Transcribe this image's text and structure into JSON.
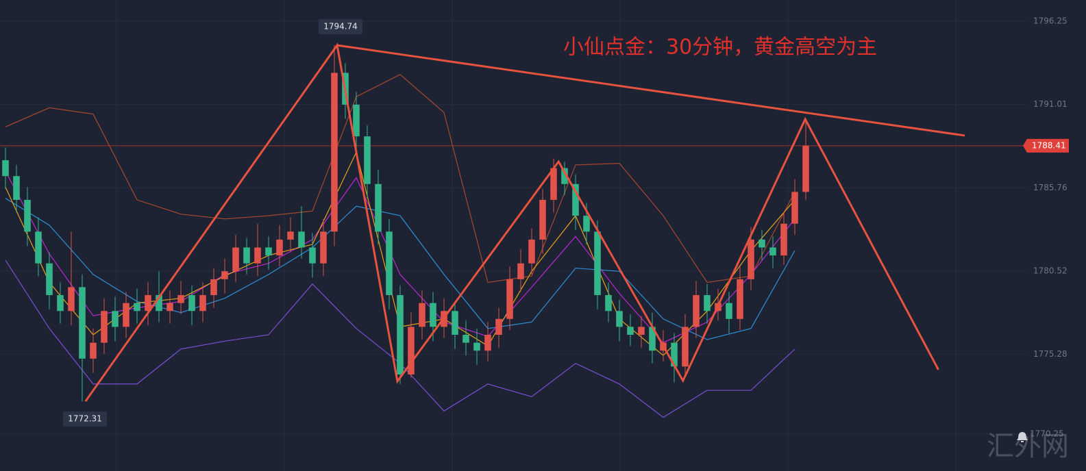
{
  "chart_data": {
    "type": "candlestick",
    "title": "小仙点金：30分钟，黄金高空为主",
    "watermark": "汇外网",
    "open": [
      1787.5,
      1786.5,
      1785,
      1783,
      1781,
      1779,
      1778,
      1779.5,
      1775,
      1776,
      1778,
      1777,
      1778.5,
      1778,
      1779,
      1778,
      1778.5,
      1779,
      1778,
      1779,
      1780,
      1780.5,
      1782,
      1781,
      1782,
      1781.5,
      1782.5,
      1783,
      1782,
      1781,
      1783,
      1793,
      1791,
      1789,
      1786,
      1783,
      1779,
      1774,
      1777,
      1778.5,
      1777,
      1778,
      1776.5,
      1776,
      1775.5,
      1776.5,
      1777.5,
      1780,
      1781,
      1782.5,
      1785,
      1787,
      1786,
      1784,
      1783,
      1779,
      1778,
      1777,
      1776.5,
      1777,
      1775.5,
      1776,
      1774.5,
      1777,
      1779,
      1778,
      1778.5,
      1777.5,
      1780,
      1782.5,
      1782,
      1781.5,
      1783.5,
      1785.5
    ],
    "high": [
      1788.3,
      1787.2,
      1785.8,
      1783.9,
      1781.7,
      1779.8,
      1783,
      1780.3,
      1776.9,
      1778.8,
      1778.9,
      1779.2,
      1779.4,
      1779.8,
      1780.5,
      1779.3,
      1779.9,
      1779.6,
      1779.8,
      1780.7,
      1781.3,
      1782.8,
      1782.6,
      1783.5,
      1782.7,
      1783.4,
      1783.9,
      1784.6,
      1782.9,
      1783.8,
      1794.74,
      1793.6,
      1791.8,
      1789.7,
      1786.9,
      1783.8,
      1779.6,
      1777.9,
      1779.3,
      1779.2,
      1778.8,
      1778.6,
      1777.4,
      1776.9,
      1777.3,
      1778.2,
      1780.8,
      1781.9,
      1783.2,
      1785.7,
      1787.6,
      1787.4,
      1786.6,
      1784.8,
      1783.7,
      1779.8,
      1778.7,
      1777.8,
      1777.7,
      1777.9,
      1776.8,
      1776.6,
      1777.8,
      1779.9,
      1779.7,
      1779.4,
      1779.2,
      1780.8,
      1783.3,
      1783.1,
      1782.7,
      1784.2,
      1786.3,
      1790.1
    ],
    "low": [
      1785.7,
      1784.2,
      1782.1,
      1780.2,
      1778.1,
      1777.2,
      1777.1,
      1772.31,
      1774.1,
      1775.3,
      1776.1,
      1776.3,
      1777.2,
      1777.1,
      1777.3,
      1777.2,
      1777.8,
      1777.1,
      1777.3,
      1778.2,
      1779.1,
      1779.8,
      1780.3,
      1780.2,
      1780.6,
      1780.8,
      1781.7,
      1781.3,
      1780.1,
      1780.2,
      1782.1,
      1790.1,
      1788.2,
      1785.1,
      1782.2,
      1778.1,
      1773.4,
      1773.8,
      1776.2,
      1776.1,
      1776.3,
      1775.6,
      1775.2,
      1774.6,
      1774.8,
      1775.7,
      1776.8,
      1779.2,
      1780.3,
      1781.6,
      1784.2,
      1785.3,
      1783.1,
      1782.2,
      1778.1,
      1777.3,
      1776.1,
      1775.8,
      1775.7,
      1774.7,
      1774.8,
      1773.5,
      1773.9,
      1776.3,
      1777.2,
      1777.4,
      1776.6,
      1776.8,
      1779.3,
      1781.2,
      1780.7,
      1780.9,
      1782.8,
      1785
    ],
    "close": [
      1786.5,
      1785,
      1783,
      1781,
      1779,
      1778,
      1779.5,
      1775,
      1776,
      1778,
      1777,
      1778.5,
      1778,
      1779,
      1778,
      1778.5,
      1779,
      1778,
      1779,
      1780,
      1780.5,
      1782,
      1781,
      1782,
      1781.5,
      1782.5,
      1783,
      1782,
      1781,
      1783,
      1793,
      1791,
      1789,
      1786,
      1783,
      1779,
      1774,
      1777,
      1778.5,
      1777,
      1778,
      1776.5,
      1776,
      1775.5,
      1776.5,
      1777.5,
      1780,
      1781,
      1782.5,
      1785,
      1787,
      1786,
      1784,
      1783,
      1779,
      1778,
      1777,
      1776.5,
      1777,
      1775.5,
      1776,
      1774.5,
      1777,
      1779,
      1778,
      1778.5,
      1777.5,
      1780,
      1782.5,
      1782,
      1781.5,
      1783.5,
      1785.5,
      1788.41
    ],
    "up_color": "#e0524a",
    "down_color": "#33b58a",
    "indicator_x": [
      0,
      4,
      8,
      12,
      16,
      20,
      24,
      28,
      32,
      36,
      40,
      44,
      48,
      52,
      56,
      60,
      64,
      68,
      72
    ],
    "series": [
      {
        "color": "#a9482f",
        "values": [
          1789.6,
          1790.8,
          1790.4,
          1785,
          1784.1,
          1783.8,
          1784,
          1784.3,
          1791.5,
          1792.9,
          1790.5,
          1779.8,
          1780.2,
          1787.2,
          1787.3,
          1784,
          1779.8,
          1780.2,
          1785.5
        ]
      },
      {
        "color": "#2f8fd8",
        "values": [
          1785.1,
          1783.4,
          1780.3,
          1778.6,
          1777.9,
          1778.8,
          1780.3,
          1782,
          1784.6,
          1784,
          1780.3,
          1776.9,
          1777.3,
          1780.7,
          1780.5,
          1777.5,
          1776.2,
          1776.9,
          1781.8
        ]
      },
      {
        "color": "#7b4fd6",
        "values": [
          1781.2,
          1776.9,
          1773.4,
          1773.4,
          1775.6,
          1776.1,
          1776.5,
          1779.7,
          1776.9,
          1774.7,
          1771.7,
          1773.4,
          1772.6,
          1774.7,
          1773.4,
          1771.3,
          1773,
          1773,
          1775.6
        ]
      },
      {
        "color": "#c026d3",
        "values": [
          1786.8,
          1781.6,
          1777.7,
          1778.2,
          1778.6,
          1780.3,
          1781,
          1782.5,
          1786.4,
          1780.3,
          1777.3,
          1776.4,
          1779.5,
          1782.7,
          1779.1,
          1776,
          1777.3,
          1780.3,
          1783.8
        ]
      },
      {
        "color": "#e8a317",
        "values": [
          1785.8,
          1779.8,
          1776.5,
          1778.5,
          1778.8,
          1780.2,
          1781.5,
          1782.2,
          1788,
          1777,
          1777.5,
          1775.8,
          1780.5,
          1784,
          1777.5,
          1775.2,
          1778,
          1781.8,
          1785
        ]
      }
    ],
    "drawings": [
      {
        "color": "#e8533f",
        "x": [
          7.3,
          30.25,
          35.75,
          50.45,
          61.8,
          72.95,
          85.1
        ],
        "y": [
          1772.31,
          1794.74,
          1773.57,
          1787.41,
          1773.61,
          1790.08,
          1774.3
        ]
      },
      {
        "color": "#e8533f",
        "x": [
          30.25,
          87.5
        ],
        "y": [
          1794.74,
          1789.05
        ]
      }
    ],
    "annotations": [
      {
        "value": 1794.74
      },
      {
        "value": 1772.31
      }
    ],
    "xlim": [
      -0.5,
      93.25
    ],
    "ylim": [
      1767.92,
      1797.59
    ],
    "yticks": [
      1770.25,
      1775.28,
      1780.52,
      1785.76,
      1791.01,
      1796.25
    ],
    "grid": true
  }
}
